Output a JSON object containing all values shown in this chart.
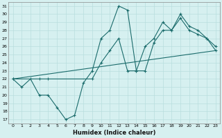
{
  "xlabel": "Humidex (Indice chaleur)",
  "xlim": [
    -0.5,
    23.5
  ],
  "ylim": [
    16.5,
    31.5
  ],
  "xticks": [
    0,
    1,
    2,
    3,
    4,
    5,
    6,
    7,
    8,
    9,
    10,
    11,
    12,
    13,
    14,
    15,
    16,
    17,
    18,
    19,
    20,
    21,
    22,
    23
  ],
  "yticks": [
    17,
    18,
    19,
    20,
    21,
    22,
    23,
    24,
    25,
    26,
    27,
    28,
    29,
    30,
    31
  ],
  "background_color": "#d6f0f0",
  "grid_color": "#b8dede",
  "line_color": "#1a6b6b",
  "line1_x": [
    0,
    1,
    2,
    3,
    4,
    5,
    6,
    7,
    8,
    9,
    10,
    11,
    12,
    13,
    14,
    15,
    16,
    17,
    18,
    19,
    20,
    21,
    22,
    23
  ],
  "line1_y": [
    22,
    21,
    22,
    20,
    20,
    18.5,
    17,
    17.5,
    21.5,
    23,
    27,
    28,
    31,
    30.5,
    23,
    23,
    26.5,
    28,
    28,
    29.5,
    28,
    27.5,
    27,
    25.5
  ],
  "line2_x": [
    0,
    3,
    4,
    9,
    10,
    11,
    12,
    13,
    14,
    15,
    16,
    17,
    18,
    19,
    20,
    21,
    22,
    23
  ],
  "line2_y": [
    22,
    22,
    22,
    22,
    24,
    25.5,
    27,
    23,
    23,
    26,
    27,
    29,
    28,
    30,
    28.5,
    28,
    27,
    26
  ],
  "line3_x": [
    0,
    23
  ],
  "line3_y": [
    22,
    25.5
  ]
}
